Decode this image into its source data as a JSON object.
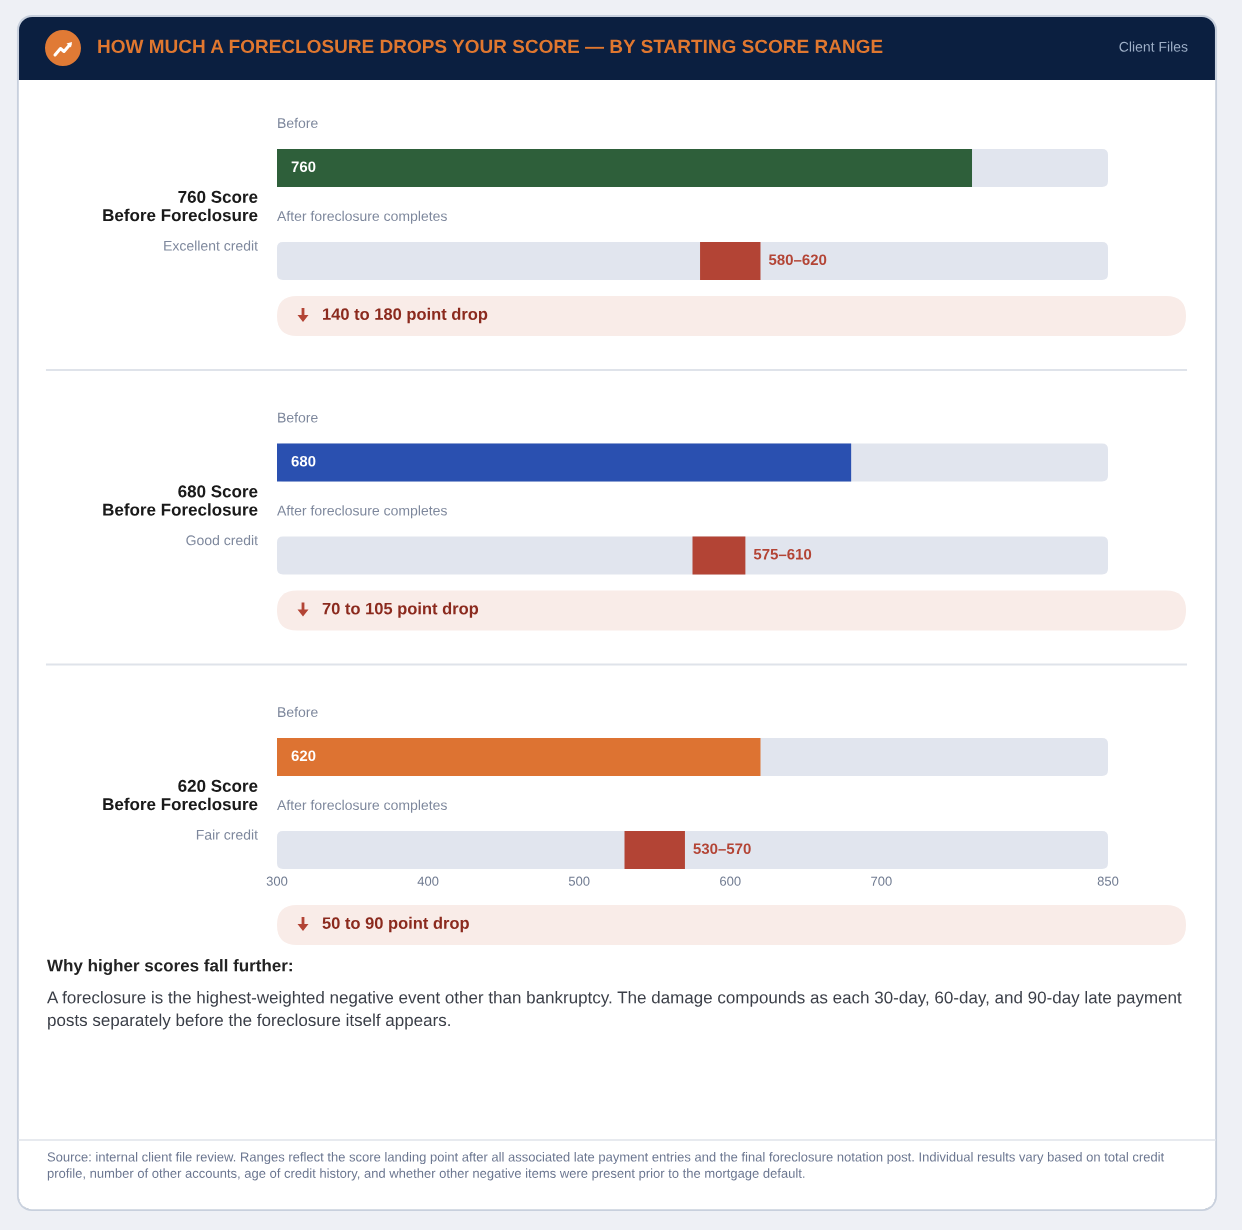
{
  "chart_data": [
    {
      "type": "other",
      "title": "HOW MUCH A FORECLOSURE DROPS YOUR SCORE — BY STARTING SCORE RANGE",
      "subtitle": "Client Files"
    },
    {
      "type": "bar",
      "orientation": "horizontal",
      "title": "760 Score\nBefore Foreclosure",
      "subtitle": "Excellent credit",
      "categories": [
        "Before",
        "After foreclosure completes"
      ],
      "values": [
        760,
        40
      ],
      "base": [
        null,
        580
      ],
      "value_labels": [
        "760",
        "580–620"
      ],
      "colors": [
        "#2e5f3a",
        "#b34435"
      ],
      "xlim": [
        300,
        850
      ],
      "tick_labels": "y",
      "annotations": [
        "140 to 180 point drop"
      ]
    },
    {
      "type": "bar",
      "orientation": "horizontal",
      "title": "680 Score\nBefore Foreclosure",
      "subtitle": "Good credit",
      "categories": [
        "Before",
        "After foreclosure completes"
      ],
      "values": [
        680,
        35
      ],
      "base": [
        null,
        575
      ],
      "value_labels": [
        "680",
        "575–610"
      ],
      "colors": [
        "#2a50b0",
        "#b34435"
      ],
      "xlim": [
        300,
        850
      ],
      "tick_labels": "y",
      "annotations": [
        "70 to 105 point drop"
      ]
    },
    {
      "type": "bar",
      "orientation": "horizontal",
      "title": "620 Score\nBefore Foreclosure",
      "subtitle": "Fair credit",
      "categories": [
        "Before",
        "After foreclosure completes"
      ],
      "values": [
        620,
        40
      ],
      "base": [
        null,
        530
      ],
      "value_labels": [
        "620",
        "530–570"
      ],
      "colors": [
        "#dd7332",
        "#b34435"
      ],
      "xlim": [
        300,
        850
      ],
      "xticks": [
        300,
        400,
        500,
        600,
        700,
        850
      ],
      "annotations": [
        "50 to 90 point drop"
      ]
    },
    {
      "type": "other",
      "title": "Why higher scores fall further:",
      "annotations": [
        "A foreclosure is the highest-weighted negative event other than bankruptcy. The damage compounds as each 30-day, 60-day, and 90-day late payment posts separately before the foreclosure itself appears.",
        "Source: internal client file review. Ranges reflect the score landing point after all associated late payment entries and the final foreclosure notation post. Individual results vary based on total credit profile, number of other accounts, age of credit history, and whether other negative items were present prior to the mortgage default."
      ]
    }
  ]
}
